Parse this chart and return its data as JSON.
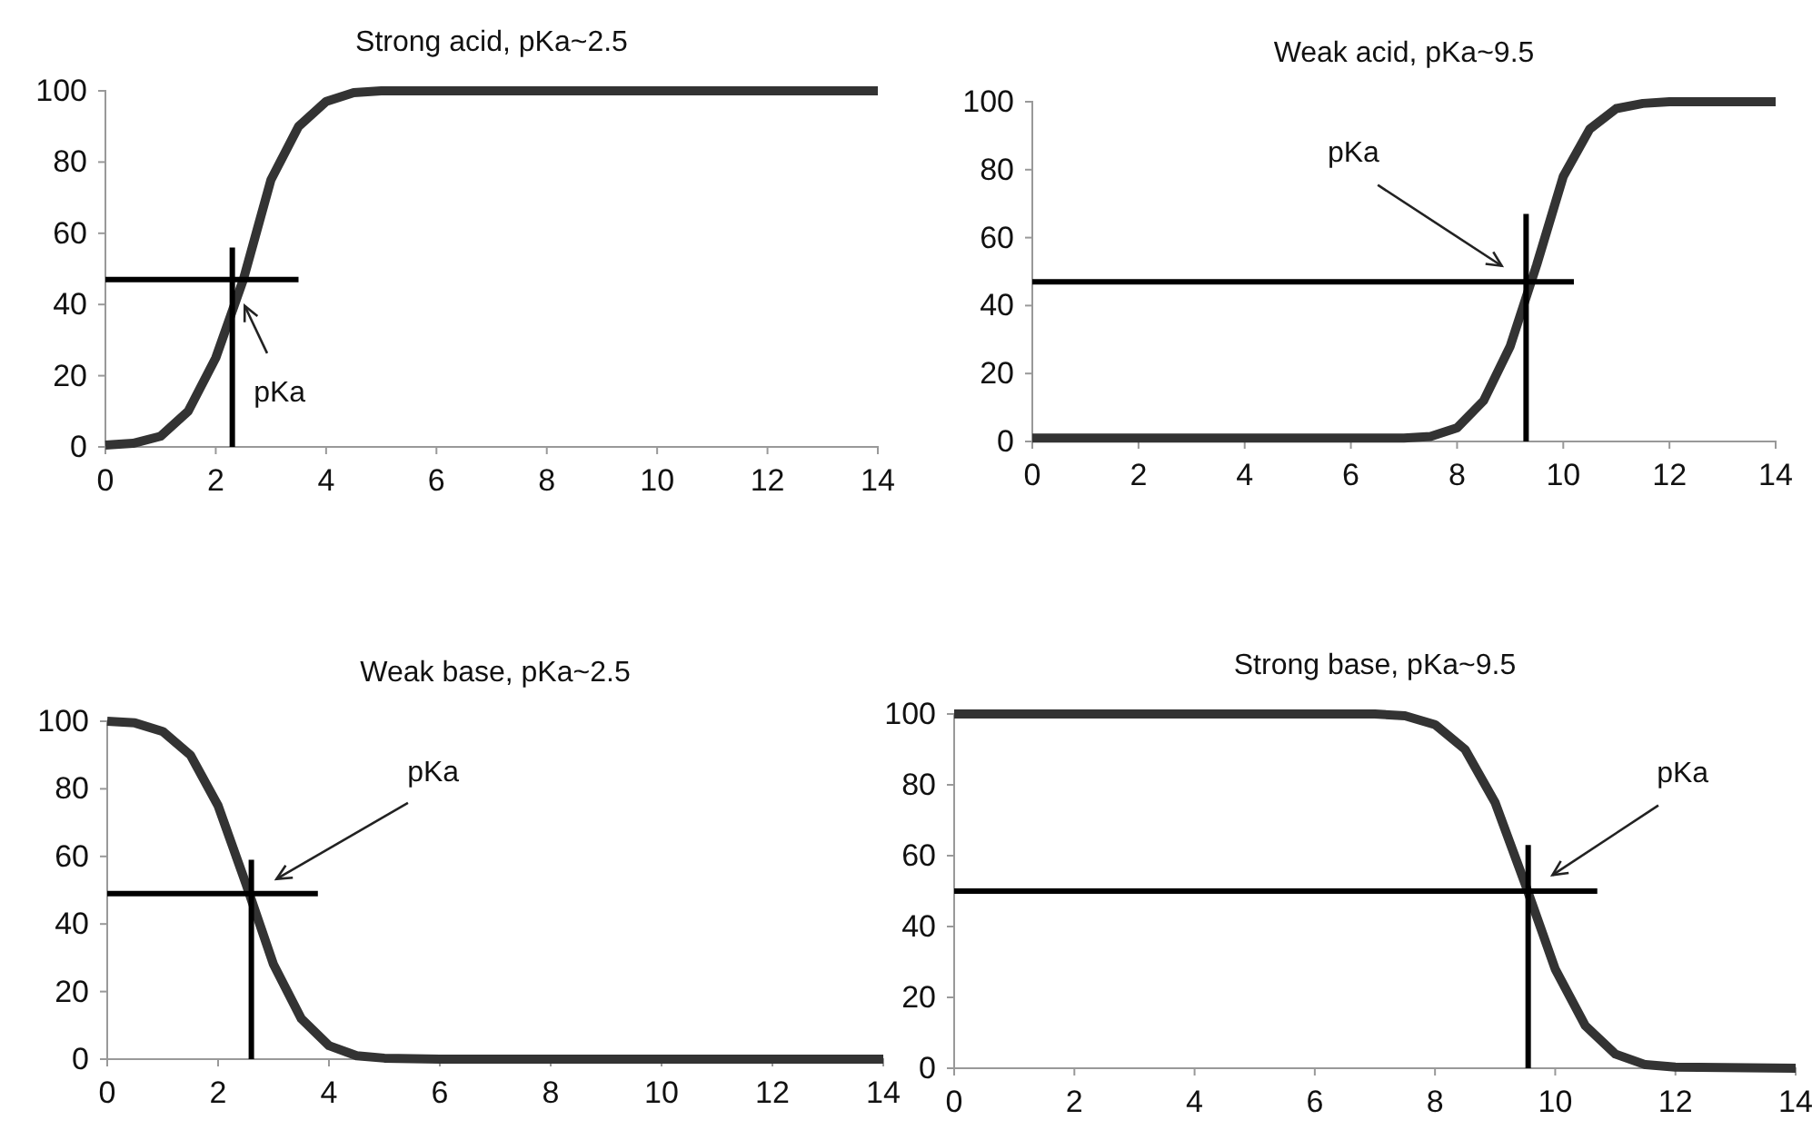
{
  "chart_data": [
    {
      "type": "line",
      "title": "Strong acid, pKa~2.5",
      "xlim": [
        0,
        14
      ],
      "ylim": [
        0,
        100
      ],
      "xticks": [
        0,
        2,
        4,
        6,
        8,
        10,
        12,
        14
      ],
      "yticks": [
        0,
        20,
        40,
        60,
        80,
        100
      ],
      "series": [
        {
          "color": "#333333",
          "x": [
            0,
            0.5,
            1,
            1.5,
            2,
            2.5,
            3,
            3.5,
            4,
            4.5,
            5,
            6,
            8,
            10,
            12,
            14
          ],
          "values": [
            0.5,
            1,
            3,
            10,
            25,
            47,
            75,
            90,
            97,
            99.5,
            100,
            100,
            100,
            100,
            100,
            100
          ]
        },
        {
          "color": "#000000",
          "x": [
            0,
            3.5
          ],
          "values": [
            47,
            47
          ]
        },
        {
          "color": "#000000",
          "x": [
            2.3,
            2.3
          ],
          "values": [
            0,
            56
          ]
        }
      ],
      "annotations": [
        "pKa"
      ]
    },
    {
      "type": "line",
      "title": "Weak acid, pKa~9.5",
      "xlim": [
        0,
        14
      ],
      "ylim": [
        0,
        100
      ],
      "xticks": [
        0,
        2,
        4,
        6,
        8,
        10,
        12,
        14
      ],
      "yticks": [
        0,
        20,
        40,
        60,
        80,
        100
      ],
      "series": [
        {
          "color": "#333333",
          "x": [
            0,
            2,
            4,
            6,
            7,
            7.5,
            8,
            8.5,
            9,
            9.5,
            10,
            10.5,
            11,
            11.5,
            12,
            14
          ],
          "values": [
            1,
            1,
            1,
            1,
            1,
            1.5,
            4,
            12,
            28,
            52,
            78,
            92,
            98,
            99.5,
            100,
            100
          ]
        },
        {
          "color": "#000000",
          "x": [
            0,
            10.2
          ],
          "values": [
            47,
            47
          ]
        },
        {
          "color": "#000000",
          "x": [
            9.3,
            9.3
          ],
          "values": [
            0,
            67
          ]
        }
      ],
      "annotations": [
        "pKa"
      ]
    },
    {
      "type": "line",
      "title": "Weak base, pKa~2.5",
      "xlim": [
        0,
        14
      ],
      "ylim": [
        0,
        100
      ],
      "xticks": [
        0,
        2,
        4,
        6,
        8,
        10,
        12,
        14
      ],
      "yticks": [
        0,
        20,
        40,
        60,
        80,
        100
      ],
      "series": [
        {
          "color": "#333333",
          "x": [
            0,
            0.5,
            1,
            1.5,
            2,
            2.5,
            3,
            3.5,
            4,
            4.5,
            5,
            6,
            8,
            10,
            12,
            14
          ],
          "values": [
            100,
            99.5,
            97,
            90,
            75,
            52,
            28,
            12,
            4,
            1,
            0.3,
            0,
            0,
            0,
            0,
            0
          ]
        },
        {
          "color": "#000000",
          "x": [
            0,
            3.8
          ],
          "values": [
            49,
            49
          ]
        },
        {
          "color": "#000000",
          "x": [
            2.6,
            2.6
          ],
          "values": [
            0,
            59
          ]
        }
      ],
      "annotations": [
        "pKa"
      ]
    },
    {
      "type": "line",
      "title": "Strong base, pKa~9.5",
      "xlim": [
        0,
        14
      ],
      "ylim": [
        0,
        100
      ],
      "xticks": [
        0,
        2,
        4,
        6,
        8,
        10,
        12,
        14
      ],
      "yticks": [
        0,
        20,
        40,
        60,
        80,
        100
      ],
      "series": [
        {
          "color": "#333333",
          "x": [
            0,
            2,
            4,
            6,
            7,
            7.5,
            8,
            8.5,
            9,
            9.5,
            10,
            10.5,
            11,
            11.5,
            12,
            14
          ],
          "values": [
            100,
            100,
            100,
            100,
            100,
            99.5,
            97,
            90,
            75,
            52,
            28,
            12,
            4,
            1,
            0.3,
            0
          ]
        },
        {
          "color": "#000000",
          "x": [
            0,
            10.7
          ],
          "values": [
            50,
            50
          ]
        },
        {
          "color": "#000000",
          "x": [
            9.55,
            9.55
          ],
          "values": [
            0,
            63
          ]
        }
      ],
      "annotations": [
        "pKa"
      ]
    }
  ]
}
